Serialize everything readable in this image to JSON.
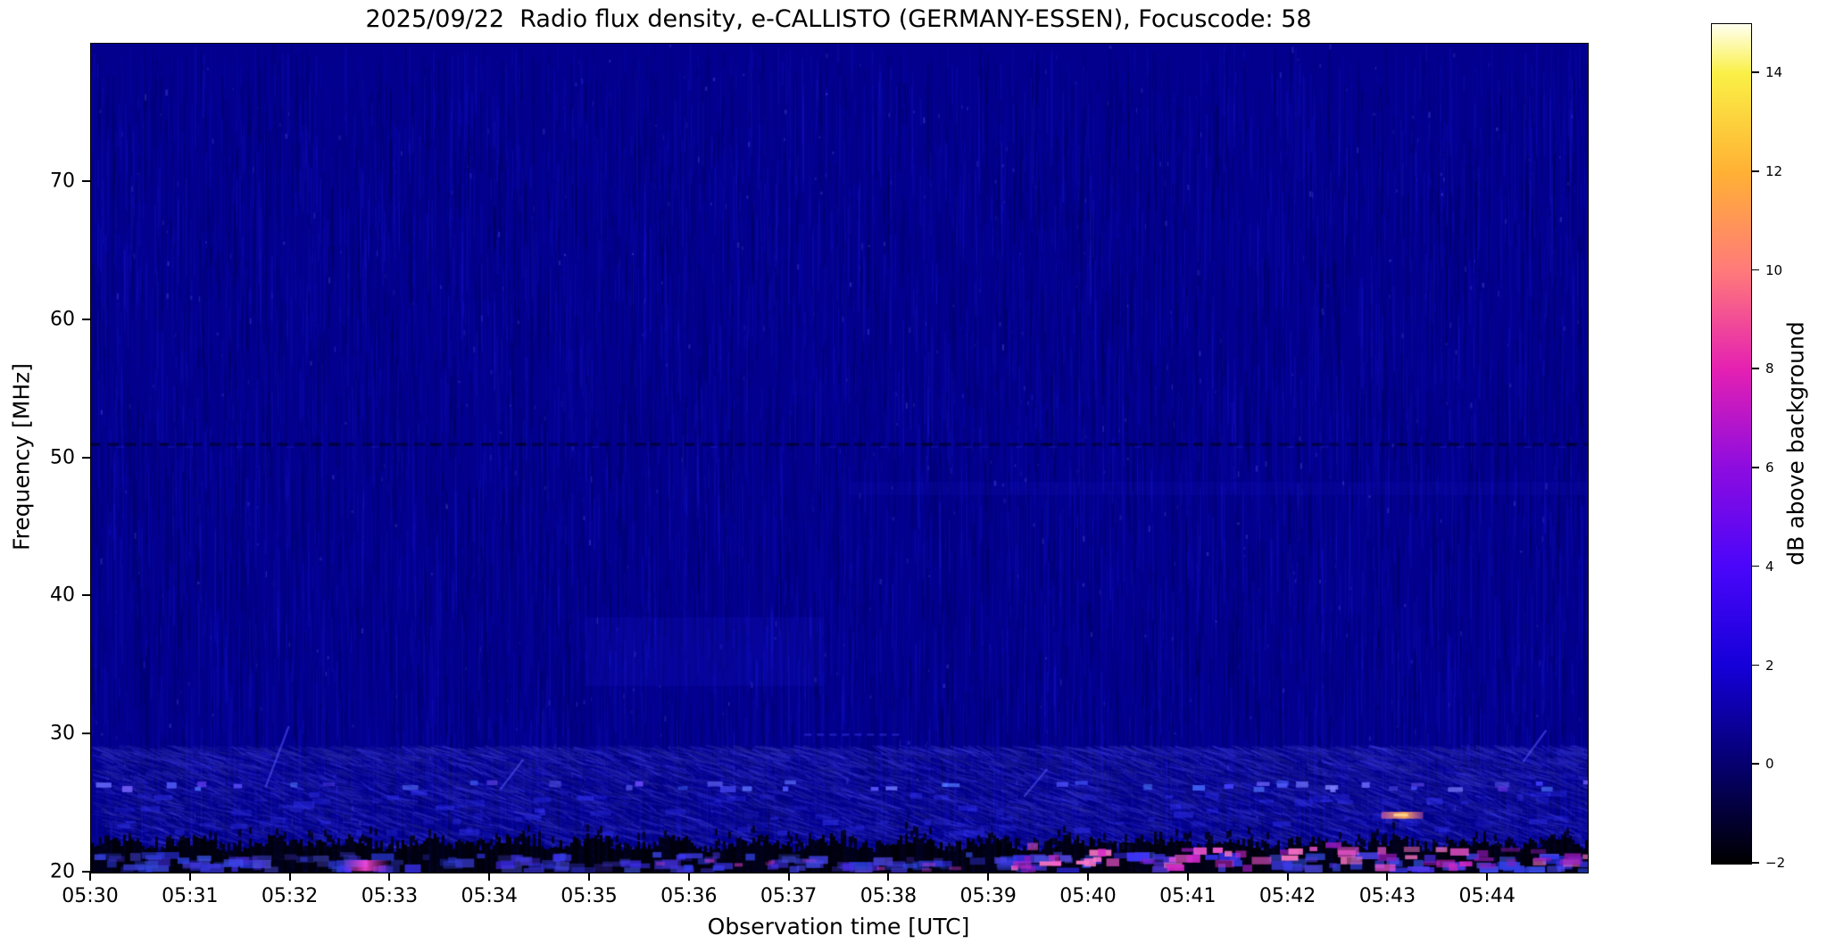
{
  "figure": {
    "title": "2025/09/22  Radio flux density, e-CALLISTO (GERMANY-ESSEN), Focuscode: 58",
    "background_color": "#ffffff"
  },
  "chart_data": {
    "type": "heatmap",
    "title": "2025/09/22  Radio flux density, e-CALLISTO (GERMANY-ESSEN), Focuscode: 58",
    "xlabel": "Observation time [UTC]",
    "ylabel": "Frequency [MHz]",
    "x_ticks": [
      "05:30",
      "05:31",
      "05:32",
      "05:33",
      "05:34",
      "05:35",
      "05:36",
      "05:37",
      "05:38",
      "05:39",
      "05:40",
      "05:41",
      "05:42",
      "05:43",
      "05:44"
    ],
    "x_range": [
      "05:30:00",
      "05:45:00"
    ],
    "x_span_minutes": 15,
    "y_ticks": [
      70,
      60,
      50,
      40,
      30,
      20
    ],
    "ylim": [
      20,
      80
    ],
    "y_axis_inverted_display": "20 MHz at bottom, 80 MHz at top",
    "grid": false,
    "legend_position": "none",
    "colorbar": {
      "label": "dB above background",
      "ticks": [
        14,
        12,
        10,
        8,
        6,
        4,
        2,
        0,
        -2
      ],
      "tick_labels": [
        "14",
        "12",
        "10",
        "8",
        "6",
        "4",
        "2",
        "0",
        "−2"
      ],
      "range": [
        -2,
        15
      ],
      "stops": [
        {
          "value": -2,
          "color": "#000000"
        },
        {
          "value": 0,
          "color": "#05006e"
        },
        {
          "value": 2,
          "color": "#1400d8"
        },
        {
          "value": 4,
          "color": "#4a06fa"
        },
        {
          "value": 6,
          "color": "#8c0ce0"
        },
        {
          "value": 8,
          "color": "#e420b2"
        },
        {
          "value": 10,
          "color": "#ff7a7a"
        },
        {
          "value": 12,
          "color": "#ffb134"
        },
        {
          "value": 14,
          "color": "#faf046"
        },
        {
          "value": 15,
          "color": "#fffff0"
        }
      ]
    },
    "heatmap_features": {
      "description": "Mostly quiet solar radio spectrogram: uniform dark-blue background (~0 dB) with vertical noise striping; ionospheric/terrestrial noise below ~29 MHz; black saturated band near 20-22 MHz; pink/magenta interference bursts in the 20-25 MHz band intensifying after ~05:39; dashed dark RFI line at 51 MHz.",
      "base_color": "#03008e",
      "background_db": 0.3,
      "noise_band_top_mhz": 29.2,
      "black_band": {
        "freq_top": 22.2,
        "freq_bottom": 20.0
      },
      "bottom_blue_row": {
        "freq_top": 21.3,
        "freq_bottom": 20.1
      },
      "rfi_line_mhz": 51,
      "faint_patch": {
        "t_min": 4.95,
        "t_max": 7.35,
        "f_min": 33.5,
        "f_max": 38.5
      },
      "faint_rows_48mhz": {
        "t_min": 7.6,
        "t_max": 15,
        "f_min": 47.3,
        "f_max": 48.3
      },
      "bright_dot_row_mhz": 26.5,
      "pink_activity_start_min": 9.15,
      "pink_smear": {
        "t_min": 2.5,
        "t_max": 3.0,
        "f_min": 20.1,
        "f_max": 20.9
      },
      "orange_streak": {
        "t_min": 12.93,
        "t_max": 13.35,
        "f_min": 23.9,
        "f_max": 24.4
      },
      "faint_line_30mhz": {
        "t_min": 7.15,
        "t_max": 8.1,
        "f": 30.0
      },
      "diagonal_streaks": [
        {
          "t": 1.75,
          "f0": 26.2,
          "f1": 30.6
        },
        {
          "t": 4.1,
          "f0": 26.0,
          "f1": 28.2
        },
        {
          "t": 9.35,
          "f0": 25.5,
          "f1": 27.5
        },
        {
          "t": 14.35,
          "f0": 28.0,
          "f1": 30.3
        }
      ]
    }
  }
}
